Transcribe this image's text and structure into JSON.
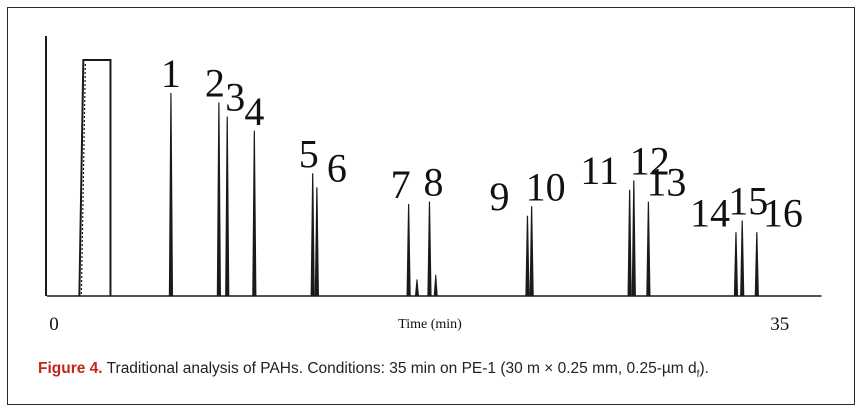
{
  "caption": {
    "figure_label": "Figure 4.",
    "text_before_subscript": " Traditional analysis of PAHs. Conditions: 35 min on PE-1 (30 m × 0.25 mm, 0.25-µm d",
    "subscript": "f",
    "text_after_subscript": ")."
  },
  "chart_data": {
    "type": "line",
    "subtype": "chromatogram",
    "xlabel": "Time (min)",
    "ylabel": "",
    "title": "",
    "x_tick_labels": [
      "0",
      "35"
    ],
    "x_ticks": [
      0,
      35
    ],
    "xlim": [
      0,
      37
    ],
    "ylim": [
      0,
      1
    ],
    "grid": false,
    "legend": "none",
    "line_color": "#1a1a1a",
    "solvent_peak": {
      "start": 1.6,
      "end": 2.9,
      "height": 1.0
    },
    "peaks": [
      {
        "label": "1",
        "x": 5.8,
        "height": 0.86
      },
      {
        "label": "2",
        "x": 8.1,
        "height": 0.82
      },
      {
        "label": "3",
        "x": 8.5,
        "height": 0.76
      },
      {
        "label": "4",
        "x": 9.8,
        "height": 0.7
      },
      {
        "label": "5",
        "x": 12.6,
        "height": 0.52
      },
      {
        "label": "6",
        "x": 12.8,
        "height": 0.46
      },
      {
        "label": "7",
        "x": 17.2,
        "height": 0.39
      },
      {
        "label": "8",
        "x": 18.2,
        "height": 0.4
      },
      {
        "label": "9",
        "x": 22.9,
        "height": 0.34
      },
      {
        "label": "10",
        "x": 23.1,
        "height": 0.38
      },
      {
        "label": "11",
        "x": 27.8,
        "height": 0.45
      },
      {
        "label": "12",
        "x": 28.0,
        "height": 0.49
      },
      {
        "label": "13",
        "x": 28.7,
        "height": 0.4
      },
      {
        "label": "14",
        "x": 32.9,
        "height": 0.27
      },
      {
        "label": "15",
        "x": 33.2,
        "height": 0.32
      },
      {
        "label": "16",
        "x": 33.9,
        "height": 0.27
      }
    ],
    "minor_peaks": [
      {
        "x": 17.6,
        "height": 0.07
      },
      {
        "x": 18.5,
        "height": 0.09
      }
    ]
  }
}
